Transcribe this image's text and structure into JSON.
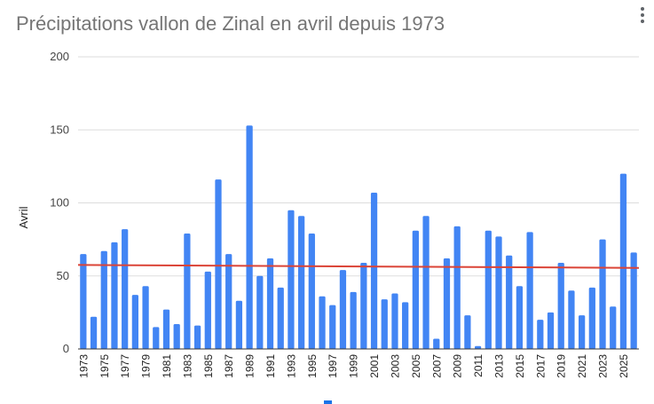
{
  "chart_data": {
    "type": "bar",
    "title": "Précipitations vallon de Zinal en avril depuis 1973",
    "xlabel": "",
    "ylabel": "Avril",
    "ylim": [
      0,
      200
    ],
    "yticks": [
      0,
      50,
      100,
      150,
      200
    ],
    "x_tick_labels": [
      "1973",
      "1975",
      "1977",
      "1979",
      "1981",
      "1983",
      "1985",
      "1987",
      "1989",
      "1991",
      "1993",
      "1995",
      "1997",
      "1999",
      "2001",
      "2003",
      "2005",
      "2007",
      "2009",
      "2011",
      "2013",
      "2015",
      "2017",
      "2019",
      "2021",
      "2023",
      "2025"
    ],
    "categories": [
      "1973",
      "1974",
      "1975",
      "1976",
      "1977",
      "1978",
      "1979",
      "1980",
      "1981",
      "1982",
      "1983",
      "1984",
      "1985",
      "1986",
      "1987",
      "1988",
      "1989",
      "1990",
      "1991",
      "1992",
      "1993",
      "1994",
      "1995",
      "1996",
      "1997",
      "1998",
      "1999",
      "2000",
      "2001",
      "2002",
      "2003",
      "2004",
      "2005",
      "2006",
      "2007",
      "2008",
      "2009",
      "2010",
      "2011",
      "2012",
      "2013",
      "2014",
      "2015",
      "2016",
      "2017",
      "2018",
      "2019",
      "2020",
      "2021",
      "2022",
      "2023",
      "2024",
      "2025",
      "2026"
    ],
    "values": [
      65,
      22,
      67,
      73,
      82,
      37,
      43,
      15,
      27,
      17,
      79,
      16,
      53,
      116,
      65,
      33,
      153,
      50,
      62,
      42,
      95,
      91,
      79,
      36,
      30,
      54,
      39,
      59,
      107,
      34,
      38,
      32,
      81,
      91,
      7,
      62,
      84,
      23,
      2,
      81,
      77,
      64,
      43,
      80,
      20,
      25,
      59,
      40,
      23,
      42,
      75,
      29,
      120,
      66
    ],
    "bar_color": "#4285f4",
    "trendline": {
      "start": 57.5,
      "end": 55.5,
      "color": "#db4437"
    },
    "grid": true,
    "legend": "bottom"
  },
  "icons": {
    "menu": "vertical-dots-icon"
  }
}
